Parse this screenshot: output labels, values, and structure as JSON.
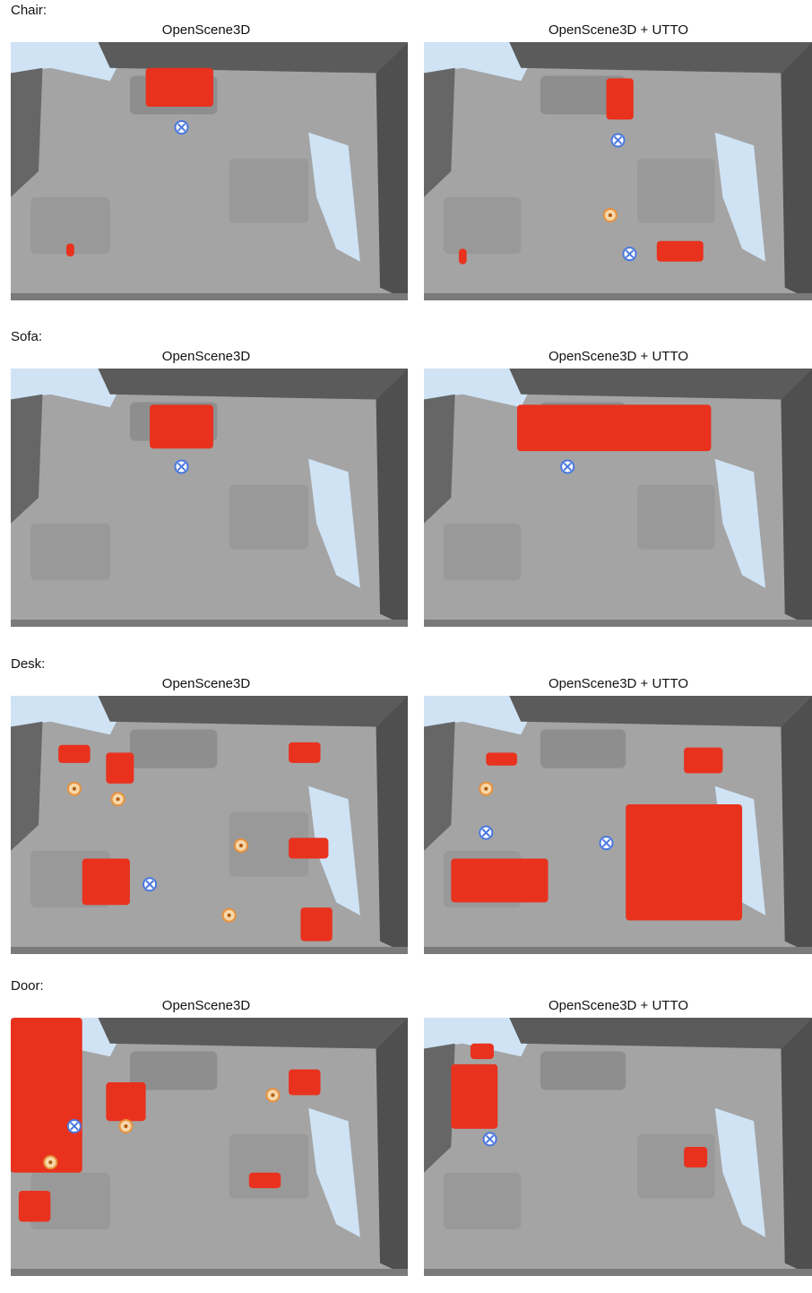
{
  "rows": [
    {
      "label": "Chair:",
      "panels": [
        {
          "title": "OpenScene3D"
        },
        {
          "title": "OpenScene3D + UTTO"
        }
      ]
    },
    {
      "label": "Sofa:",
      "panels": [
        {
          "title": "OpenScene3D"
        },
        {
          "title": "OpenScene3D + UTTO"
        }
      ]
    },
    {
      "label": "Desk:",
      "panels": [
        {
          "title": "OpenScene3D"
        },
        {
          "title": "OpenScene3D + UTTO"
        }
      ]
    },
    {
      "label": "Door:",
      "panels": [
        {
          "title": "OpenScene3D"
        },
        {
          "title": "OpenScene3D + UTTO"
        }
      ]
    }
  ]
}
